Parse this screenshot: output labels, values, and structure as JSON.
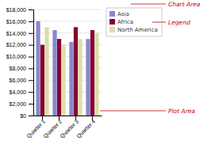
{
  "chart_data": {
    "type": "bar",
    "categories": [
      "Quarter 1",
      "Quarter 2",
      "Quarter 3",
      "Quarter 4"
    ],
    "series": [
      {
        "name": "Asia",
        "color": "#8888cc",
        "values": [
          16000,
          14500,
          12500,
          13000
        ]
      },
      {
        "name": "Africa",
        "color": "#880033",
        "values": [
          12000,
          13000,
          15000,
          14500
        ]
      },
      {
        "name": "North America",
        "color": "#ddddaa",
        "values": [
          15000,
          12000,
          13000,
          14000
        ]
      }
    ],
    "ylim": [
      0,
      18000
    ],
    "yticks": [
      {
        "value": 0,
        "label": "$0"
      },
      {
        "value": 2000,
        "label": "$2,000"
      },
      {
        "value": 4000,
        "label": "$4,000"
      },
      {
        "value": 6000,
        "label": "$6,000"
      },
      {
        "value": 8000,
        "label": "$8,000"
      },
      {
        "value": 10000,
        "label": "$10,000"
      },
      {
        "value": 12000,
        "label": "$12,000"
      },
      {
        "value": 14000,
        "label": "$14,000"
      },
      {
        "value": 16000,
        "label": "$16,000"
      },
      {
        "value": 18000,
        "label": "$18,000"
      }
    ],
    "grid": true,
    "legend": "right",
    "annotations": [
      "Chart Area",
      "Legend",
      "Plot Area"
    ]
  }
}
